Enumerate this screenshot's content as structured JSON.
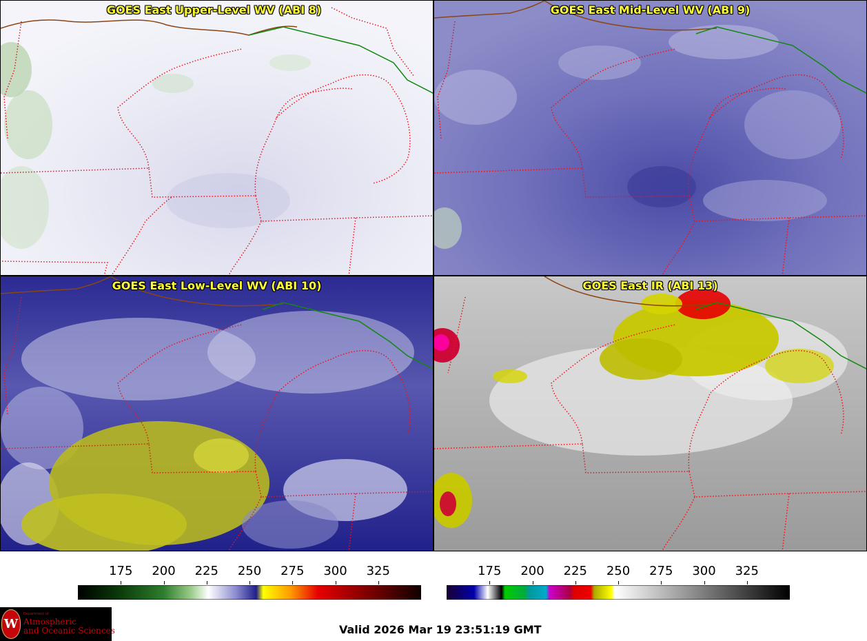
{
  "panels": [
    {
      "title": "GOES East Upper-Level WV (ABI 8)"
    },
    {
      "title": "GOES East Mid-Level WV (ABI 9)"
    },
    {
      "title": "GOES East Low-Level WV (ABI 10)"
    },
    {
      "title": "GOES East IR (ABI 13)"
    }
  ],
  "colorbars": [
    {
      "name": "water-vapor",
      "ticks": [
        "175",
        "200",
        "225",
        "250",
        "275",
        "300",
        "325"
      ]
    },
    {
      "name": "infrared",
      "ticks": [
        "175",
        "200",
        "225",
        "250",
        "275",
        "300",
        "325"
      ]
    }
  ],
  "logo": {
    "department": "Department of",
    "line1": "Atmospheric",
    "line2": "and Oceanic Sciences",
    "seal_letter": "W"
  },
  "valid_time": "Valid 2026 Mar 19 23:51:19 GMT",
  "colors": {
    "state_border": "#e8141c",
    "coast": "#8b4513",
    "intl_border": "#118811",
    "title_text": "#ffff33"
  }
}
